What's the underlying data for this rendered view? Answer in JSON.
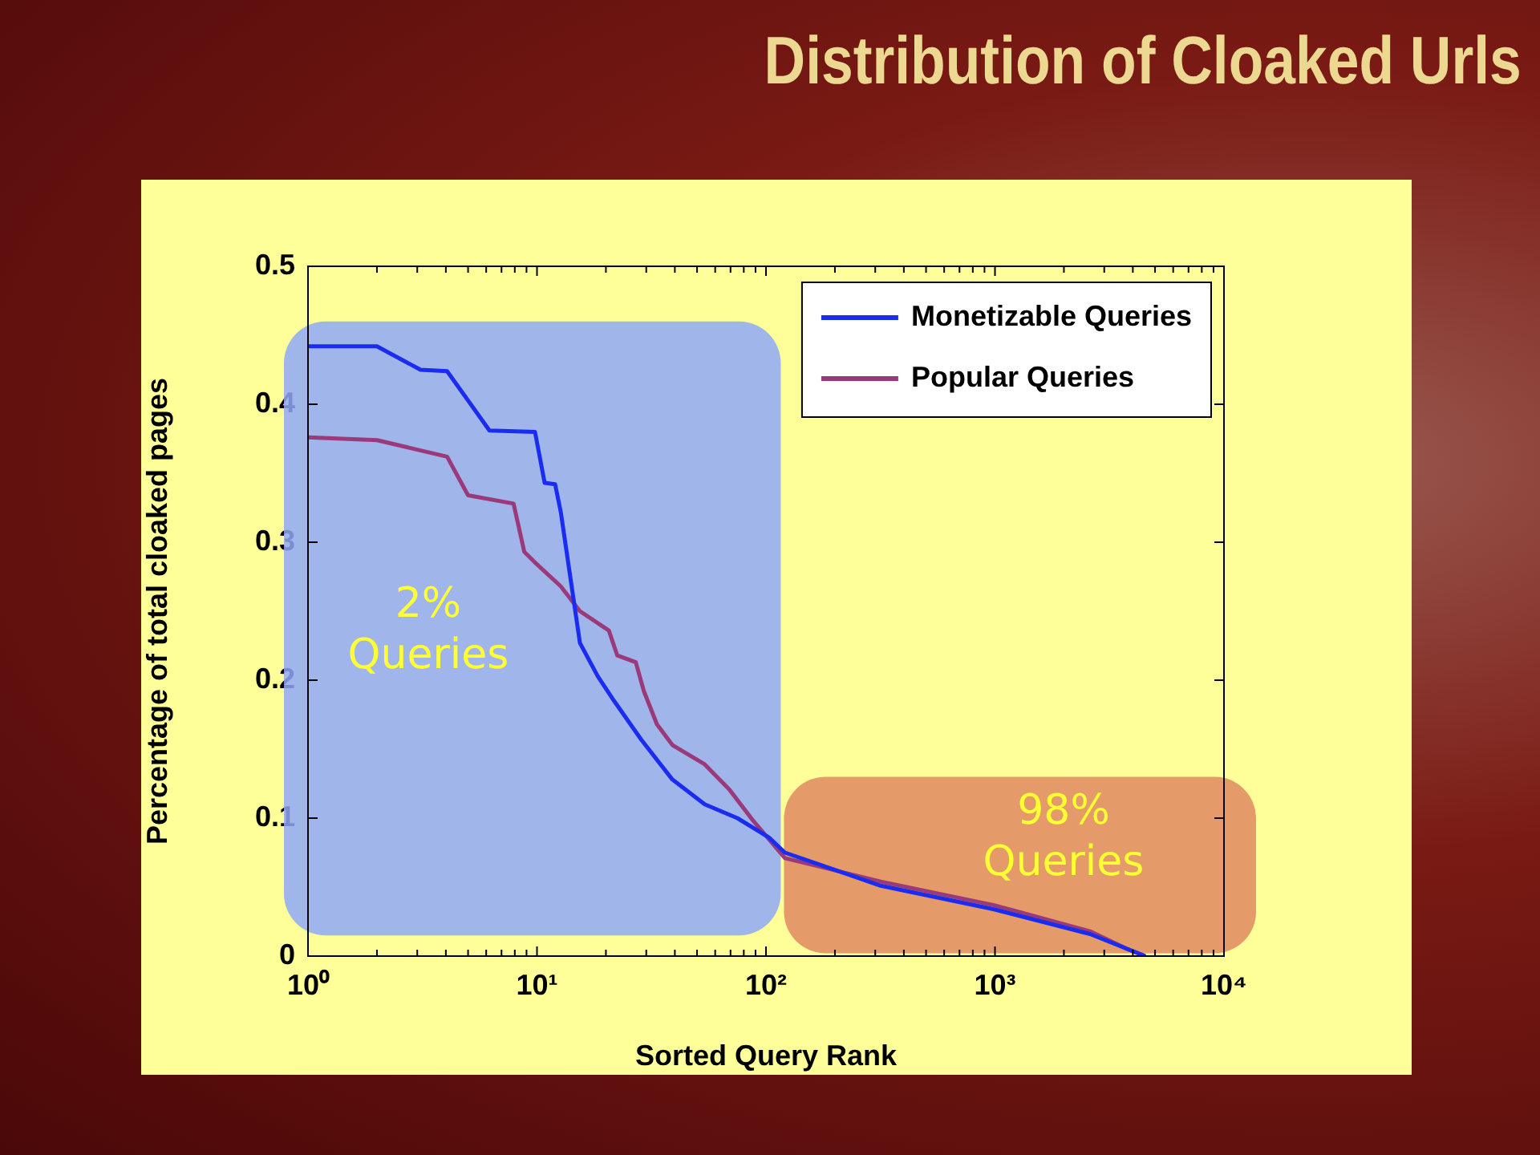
{
  "chart_data": {
    "type": "line",
    "title": "Distribution of Cloaked Urls",
    "xlabel": "Sorted Query Rank",
    "ylabel": "Percentage of total cloaked pages",
    "log": "x",
    "grid": false,
    "legend": "top right",
    "marker": "none",
    "line_style": "solid",
    "xlim": [
      1,
      10000
    ],
    "xticks": [
      {
        "value": 1,
        "label": "10⁰"
      },
      {
        "value": 2,
        "label": null
      },
      {
        "value": 3,
        "label": null
      },
      {
        "value": 4,
        "label": null
      },
      {
        "value": 5,
        "label": null
      },
      {
        "value": 6,
        "label": null
      },
      {
        "value": 7,
        "label": null
      },
      {
        "value": 8,
        "label": null
      },
      {
        "value": 9,
        "label": null
      },
      {
        "value": 10,
        "label": "10¹"
      },
      {
        "value": 20,
        "label": null
      },
      {
        "value": 30,
        "label": null
      },
      {
        "value": 40,
        "label": null
      },
      {
        "value": 50,
        "label": null
      },
      {
        "value": 60,
        "label": null
      },
      {
        "value": 70,
        "label": null
      },
      {
        "value": 80,
        "label": null
      },
      {
        "value": 90,
        "label": null
      },
      {
        "value": 100,
        "label": "10²"
      },
      {
        "value": 200,
        "label": null
      },
      {
        "value": 300,
        "label": null
      },
      {
        "value": 400,
        "label": null
      },
      {
        "value": 500,
        "label": null
      },
      {
        "value": 600,
        "label": null
      },
      {
        "value": 700,
        "label": null
      },
      {
        "value": 800,
        "label": null
      },
      {
        "value": 900,
        "label": null
      },
      {
        "value": 1000,
        "label": "10³"
      },
      {
        "value": 2000,
        "label": null
      },
      {
        "value": 3000,
        "label": null
      },
      {
        "value": 4000,
        "label": null
      },
      {
        "value": 5000,
        "label": null
      },
      {
        "value": 6000,
        "label": null
      },
      {
        "value": 7000,
        "label": null
      },
      {
        "value": 8000,
        "label": null
      },
      {
        "value": 9000,
        "label": null
      },
      {
        "value": 10000,
        "label": "10⁴"
      }
    ],
    "ylim": [
      0,
      0.5
    ],
    "yticks": [
      0,
      0.1,
      0.2,
      0.3,
      0.4,
      0.5
    ],
    "series": [
      {
        "name": "Monetizable Queries",
        "color": "#1a2cf0",
        "x": [
          1,
          2,
          3.1,
          4.05,
          6.2,
          9.8,
          10.8,
          12,
          12.7,
          15.4,
          18.4,
          21.7,
          28.5,
          39,
          54,
          75,
          103,
          121,
          317,
          984,
          2600,
          4530
        ],
        "values": [
          0.442,
          0.442,
          0.425,
          0.424,
          0.381,
          0.38,
          0.343,
          0.342,
          0.322,
          0.227,
          0.203,
          0.185,
          0.157,
          0.128,
          0.11,
          0.1,
          0.086,
          0.075,
          0.051,
          0.034,
          0.016,
          0
        ]
      },
      {
        "name": "Popular Queries",
        "color": "#9b3a7a",
        "x": [
          1,
          2,
          4.05,
          5,
          7.9,
          8.8,
          9.7,
          12.7,
          15.4,
          20.6,
          22.4,
          27,
          29.3,
          33.4,
          39,
          54,
          69,
          88,
          121,
          317,
          984,
          2600,
          3800,
          4530
        ],
        "values": [
          0.376,
          0.374,
          0.362,
          0.334,
          0.328,
          0.293,
          0.286,
          0.268,
          0.25,
          0.236,
          0.218,
          0.213,
          0.192,
          0.168,
          0.153,
          0.139,
          0.121,
          0.098,
          0.071,
          0.054,
          0.037,
          0.018,
          0.005,
          0
        ]
      }
    ],
    "bands": [
      {
        "axis": "x",
        "from": 1,
        "to": 116,
        "label": "2% Queries",
        "color": "#8fa8f8"
      },
      {
        "axis": "x",
        "from": 116,
        "to": 10000,
        "label": "98% Queries",
        "color": "#e08a60"
      }
    ]
  }
}
